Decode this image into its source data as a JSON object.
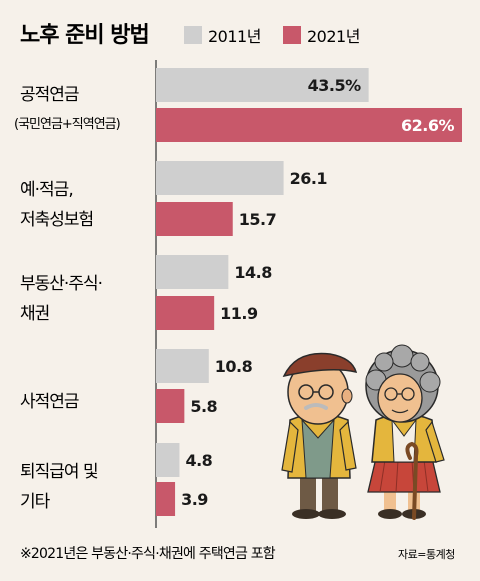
{
  "chart_data": {
    "type": "bar",
    "orientation": "horizontal",
    "title": "노후 준비 방법",
    "categories": [
      {
        "lines": [
          "공적연금",
          "(국민연금+직역연금)"
        ]
      },
      {
        "lines": [
          "예·적금,",
          "저축성보험"
        ]
      },
      {
        "lines": [
          "부동산·주식·",
          "채권"
        ]
      },
      {
        "lines": [
          "사적연금"
        ]
      },
      {
        "lines": [
          "퇴직급여 및",
          "기타"
        ]
      }
    ],
    "series": [
      {
        "name": "2011년",
        "color": "#cfcfcf",
        "values": [
          43.5,
          26.1,
          14.8,
          10.8,
          4.8
        ],
        "labels": [
          "43.5%",
          "26.1",
          "14.8",
          "10.8",
          "4.8"
        ]
      },
      {
        "name": "2021년",
        "color": "#c8586a",
        "values": [
          62.6,
          15.7,
          11.9,
          5.8,
          3.9
        ],
        "labels": [
          "62.6%",
          "15.7",
          "11.9",
          "5.8",
          "3.9"
        ]
      }
    ],
    "xlim": [
      0,
      62.6
    ],
    "legend_position": "top",
    "note": "※2021년은 부동산·주식·채권에 주택연금 포함",
    "source": "자료=통계청"
  },
  "illustration": "elderly-couple-icon"
}
